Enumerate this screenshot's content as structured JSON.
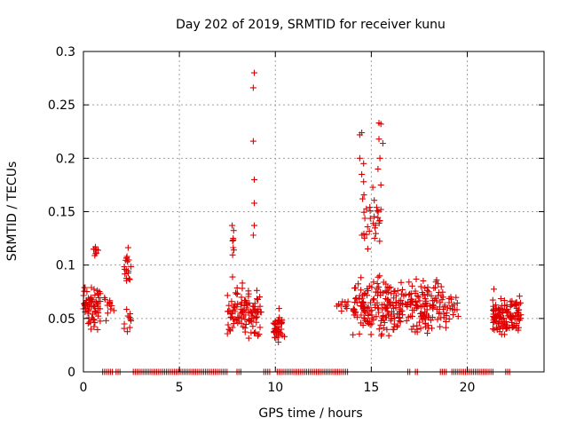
{
  "chart_data": {
    "type": "scatter",
    "title": "Day 202 of 2019, SRMTID for receiver kunu",
    "xlabel": "GPS time / hours",
    "ylabel": "SRMTID / TECUs",
    "xlim": [
      0,
      24
    ],
    "ylim": [
      0,
      0.3
    ],
    "grid": true,
    "marker": "+",
    "series_color": "#dd0000",
    "x_ticks": [
      0,
      5,
      10,
      15,
      20
    ],
    "x_tick_labels": [
      "0",
      "5",
      "10",
      "15",
      "20"
    ],
    "y_ticks": [
      0,
      0.05,
      0.1,
      0.15,
      0.2,
      0.25,
      0.3
    ],
    "y_tick_labels": [
      "0",
      "0.05",
      "0.1",
      "0.15",
      "0.2",
      "0.25",
      "0.3"
    ],
    "clusters": [
      {
        "x_start": 0.0,
        "x_end": 0.9,
        "y_low": 0.035,
        "y_high": 0.09,
        "count": 70
      },
      {
        "x_start": 0.5,
        "x_end": 0.8,
        "y_low": 0.1,
        "y_high": 0.13,
        "count": 8
      },
      {
        "x_start": 1.1,
        "x_end": 1.6,
        "y_low": 0.045,
        "y_high": 0.085,
        "count": 12
      },
      {
        "x_start": 2.1,
        "x_end": 2.5,
        "y_low": 0.03,
        "y_high": 0.065,
        "count": 10
      },
      {
        "x_start": 2.1,
        "x_end": 2.5,
        "y_low": 0.075,
        "y_high": 0.125,
        "count": 18
      },
      {
        "x_start": 7.5,
        "x_end": 9.3,
        "y_low": 0.022,
        "y_high": 0.09,
        "count": 110
      },
      {
        "x_start": 7.7,
        "x_end": 7.9,
        "y_low": 0.095,
        "y_high": 0.137,
        "count": 6
      },
      {
        "x_start": 9.9,
        "x_end": 10.5,
        "y_low": 0.022,
        "y_high": 0.06,
        "count": 40
      },
      {
        "x_start": 13.2,
        "x_end": 13.8,
        "y_low": 0.045,
        "y_high": 0.075,
        "count": 10
      },
      {
        "x_start": 14.0,
        "x_end": 18.0,
        "y_low": 0.025,
        "y_high": 0.1,
        "count": 260
      },
      {
        "x_start": 14.5,
        "x_end": 15.5,
        "y_low": 0.1,
        "y_high": 0.18,
        "count": 30
      },
      {
        "x_start": 18.0,
        "x_end": 19.0,
        "y_low": 0.028,
        "y_high": 0.1,
        "count": 45
      },
      {
        "x_start": 19.0,
        "x_end": 19.6,
        "y_low": 0.04,
        "y_high": 0.075,
        "count": 15
      },
      {
        "x_start": 21.3,
        "x_end": 22.8,
        "y_low": 0.03,
        "y_high": 0.08,
        "count": 120
      }
    ],
    "outliers": [
      {
        "x": 8.9,
        "y": 0.28
      },
      {
        "x": 8.85,
        "y": 0.266
      },
      {
        "x": 8.85,
        "y": 0.216
      },
      {
        "x": 8.9,
        "y": 0.18
      },
      {
        "x": 8.9,
        "y": 0.158
      },
      {
        "x": 8.9,
        "y": 0.137
      },
      {
        "x": 8.85,
        "y": 0.128
      },
      {
        "x": 7.75,
        "y": 0.137
      },
      {
        "x": 7.8,
        "y": 0.125
      },
      {
        "x": 14.4,
        "y": 0.222
      },
      {
        "x": 14.5,
        "y": 0.224
      },
      {
        "x": 14.4,
        "y": 0.2
      },
      {
        "x": 14.5,
        "y": 0.185
      },
      {
        "x": 14.6,
        "y": 0.195
      },
      {
        "x": 14.6,
        "y": 0.178
      },
      {
        "x": 15.4,
        "y": 0.233
      },
      {
        "x": 15.5,
        "y": 0.232
      },
      {
        "x": 15.4,
        "y": 0.218
      },
      {
        "x": 15.6,
        "y": 0.214
      },
      {
        "x": 15.45,
        "y": 0.2
      },
      {
        "x": 15.35,
        "y": 0.19
      },
      {
        "x": 15.5,
        "y": 0.175
      },
      {
        "x": 15.5,
        "y": 0.152
      },
      {
        "x": 14.55,
        "y": 0.162
      }
    ],
    "zero_ranges": [
      [
        1.0,
        1.6
      ],
      [
        1.7,
        2.0
      ],
      [
        2.6,
        7.5
      ],
      [
        8.0,
        8.3
      ],
      [
        9.4,
        9.8
      ],
      [
        10.1,
        13.8
      ],
      [
        16.9,
        17.1
      ],
      [
        17.3,
        17.5
      ],
      [
        18.6,
        19.0
      ],
      [
        19.2,
        21.4
      ],
      [
        22.0,
        22.3
      ]
    ]
  }
}
